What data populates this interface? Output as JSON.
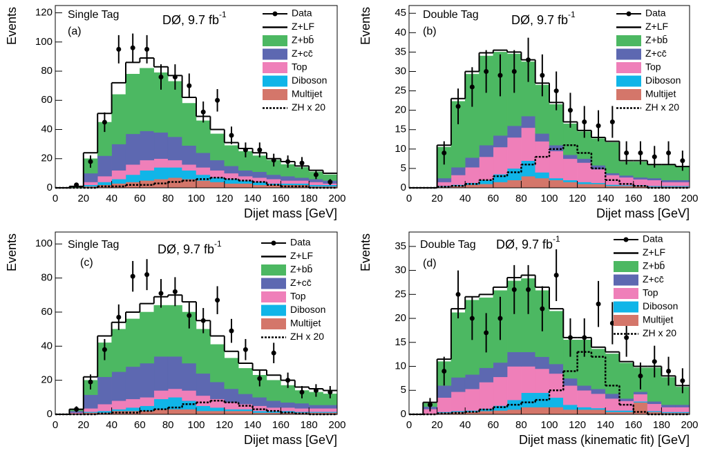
{
  "chart_data": [
    {
      "type": "histogram",
      "tag": "Single Tag",
      "panel": "(a)",
      "experiment": "DØ, 9.7 fb",
      "lumi_exponent": "-1",
      "xlabel": "Dijet mass [GeV]",
      "ylabel": "Events",
      "bins": [
        0,
        10,
        20,
        30,
        40,
        50,
        60,
        70,
        80,
        90,
        100,
        110,
        120,
        130,
        140,
        150,
        160,
        170,
        180,
        190,
        200
      ],
      "xlim": [
        0,
        200
      ],
      "xticks": [
        0,
        20,
        40,
        60,
        80,
        100,
        120,
        140,
        160,
        180,
        200
      ],
      "ylim": [
        0,
        125
      ],
      "yticks": [
        0,
        20,
        40,
        60,
        80,
        100,
        120
      ],
      "series": [
        {
          "name": "Data",
          "style": "points",
          "color": "#000000",
          "values": [
            null,
            2,
            18,
            45,
            95,
            96,
            95,
            76,
            76,
            70,
            52,
            60,
            36,
            26,
            26,
            19,
            18,
            17,
            9,
            4
          ],
          "errors": [
            null,
            1.4,
            4.2,
            6.7,
            9.7,
            9.8,
            9.7,
            8.7,
            8.7,
            8.4,
            7.2,
            7.7,
            6,
            5.1,
            5.1,
            4.4,
            4.2,
            4.1,
            3,
            2
          ]
        },
        {
          "name": "Z+LF",
          "style": "stack-line",
          "color": "#000000",
          "values": [
            0,
            0,
            4,
            6,
            8,
            8,
            7,
            4,
            4,
            4,
            3,
            3,
            2,
            2,
            2,
            1,
            2,
            1,
            1,
            1
          ]
        },
        {
          "name": "Z+bb̄",
          "style": "stack-fill",
          "color": "#4cb862",
          "values": [
            0,
            1,
            10,
            23,
            34,
            41,
            43,
            41,
            38,
            29,
            22,
            18,
            14,
            13,
            11,
            10,
            8,
            7,
            5,
            4
          ]
        },
        {
          "name": "Z+cc̄",
          "style": "stack-fill",
          "color": "#5d68b1",
          "values": [
            0,
            0,
            6,
            14,
            18,
            21,
            20,
            18,
            16,
            13,
            10,
            7,
            5,
            4,
            4,
            3,
            3,
            2,
            2,
            2
          ]
        },
        {
          "name": "Top",
          "style": "stack-fill",
          "color": "#ef7fb9",
          "values": [
            0,
            0,
            2,
            4,
            6,
            7,
            7,
            6,
            5,
            4,
            5,
            5,
            4,
            3,
            3,
            3,
            2,
            2,
            2,
            1
          ]
        },
        {
          "name": "Diboson",
          "style": "stack-fill",
          "color": "#10b5e8",
          "values": [
            0,
            0,
            1,
            2,
            3,
            5,
            7,
            8,
            7,
            6,
            4,
            3,
            3,
            2,
            2,
            1,
            1,
            1,
            1,
            1
          ]
        },
        {
          "name": "Multijet",
          "style": "stack-fill",
          "color": "#d4766a",
          "values": [
            0,
            0,
            1,
            2,
            3,
            4,
            5,
            6,
            7,
            6,
            5,
            4,
            3,
            3,
            2,
            2,
            2,
            2,
            1,
            1
          ]
        },
        {
          "name": "ZH x 20",
          "style": "dashed",
          "color": "#000000",
          "values": [
            0,
            0,
            0,
            1,
            1,
            2,
            2,
            3,
            4,
            5,
            6,
            7,
            6,
            5,
            4,
            2,
            1,
            1,
            0,
            0
          ]
        }
      ]
    },
    {
      "type": "histogram",
      "tag": "Double Tag",
      "panel": "(b)",
      "experiment": "DØ, 9.7 fb",
      "lumi_exponent": "-1",
      "xlabel": "Dijet mass [GeV]",
      "ylabel": "Events",
      "bins": [
        0,
        10,
        20,
        30,
        40,
        50,
        60,
        70,
        80,
        90,
        100,
        110,
        120,
        130,
        140,
        150,
        160,
        170,
        180,
        190,
        200
      ],
      "xlim": [
        0,
        200
      ],
      "xticks": [
        0,
        20,
        40,
        60,
        80,
        100,
        120,
        140,
        160,
        180,
        200
      ],
      "ylim": [
        0,
        47
      ],
      "yticks": [
        0,
        5,
        10,
        15,
        20,
        25,
        30,
        35,
        40,
        45
      ],
      "series": [
        {
          "name": "Data",
          "style": "points",
          "color": "#000000",
          "values": [
            null,
            null,
            9,
            21,
            26,
            30,
            29,
            30,
            33,
            29,
            25,
            20,
            17,
            16,
            17,
            9,
            9,
            8,
            9,
            7
          ],
          "errors": [
            null,
            null,
            3,
            4.6,
            5.1,
            5.5,
            5.4,
            5.5,
            5.7,
            5.4,
            5,
            4.5,
            4.1,
            4,
            4.1,
            3,
            3,
            2.8,
            3,
            2.6
          ]
        },
        {
          "name": "Z+LF",
          "style": "stack-line",
          "color": "#000000",
          "values": [
            0,
            0,
            0.5,
            0.7,
            0.7,
            0.8,
            0.5,
            0.5,
            0.5,
            0.5,
            0.5,
            0.5,
            0.3,
            0.3,
            0.3,
            0.3,
            0.3,
            0.2,
            0.2,
            0.2
          ]
        },
        {
          "name": "Z+bb̄",
          "style": "stack-fill",
          "color": "#4cb862",
          "values": [
            0,
            0,
            8,
            17,
            21.5,
            23,
            21.5,
            18.5,
            14,
            12.5,
            10.5,
            8,
            7,
            6.9,
            7.9,
            3.5,
            4,
            3.3,
            3.8,
            3.3
          ]
        },
        {
          "name": "Z+cc̄",
          "style": "stack-fill",
          "color": "#5d68b1",
          "values": [
            0,
            0,
            1,
            2,
            2.5,
            3,
            3,
            3,
            3,
            2,
            1.5,
            1,
            1,
            1,
            0.5,
            0.5,
            0.5,
            0.5,
            0.5,
            0.5
          ]
        },
        {
          "name": "Top",
          "style": "stack-fill",
          "color": "#ef7fb9",
          "values": [
            0,
            0,
            1,
            2.5,
            4,
            6,
            7,
            8,
            8.5,
            8,
            7,
            5.5,
            5,
            3.5,
            2.5,
            2,
            1.5,
            1.5,
            1,
            1
          ]
        },
        {
          "name": "Diboson",
          "style": "stack-fill",
          "color": "#10b5e8",
          "values": [
            0,
            0,
            0.2,
            0.3,
            0.5,
            1,
            2,
            3,
            4,
            1.5,
            0.5,
            0.5,
            0.5,
            0.3,
            0.3,
            0.2,
            0.2,
            0.2,
            0.2,
            0.2
          ]
        },
        {
          "name": "Multijet",
          "style": "stack-fill",
          "color": "#d4766a",
          "values": [
            0,
            0,
            0.3,
            0.5,
            0.8,
            1,
            1.5,
            2,
            3,
            2.5,
            2,
            1.5,
            1,
            1,
            0.5,
            0.5,
            0.5,
            0.3,
            0.3,
            0.3
          ]
        },
        {
          "name": "ZH x 20",
          "style": "dashed",
          "color": "#000000",
          "values": [
            0,
            0,
            0.3,
            0.5,
            1,
            2,
            3,
            4,
            6,
            8,
            10,
            11,
            9,
            5,
            2,
            1,
            0.5,
            0,
            0,
            0
          ]
        }
      ]
    },
    {
      "type": "histogram",
      "tag": "Single Tag",
      "panel": "(c)",
      "experiment": "DØ, 9.7 fb",
      "lumi_exponent": "-1",
      "xlabel": "Dijet mass [GeV]",
      "ylabel": "Events",
      "bins": [
        0,
        10,
        20,
        30,
        40,
        50,
        60,
        70,
        80,
        90,
        100,
        110,
        120,
        130,
        140,
        150,
        160,
        170,
        180,
        190,
        200
      ],
      "xlim": [
        0,
        200
      ],
      "xticks": [
        0,
        20,
        40,
        60,
        80,
        100,
        120,
        140,
        160,
        180,
        200
      ],
      "ylim": [
        0,
        107
      ],
      "yticks": [
        0,
        20,
        40,
        60,
        80,
        100
      ],
      "series": [
        {
          "name": "Data",
          "style": "points",
          "color": "#000000",
          "values": [
            null,
            3,
            19,
            38,
            57,
            81,
            82,
            71,
            72,
            58,
            55,
            67,
            49,
            38,
            21,
            36,
            20,
            13,
            14,
            13
          ],
          "errors": [
            null,
            1.7,
            4.4,
            6.2,
            7.5,
            9,
            9.1,
            8.4,
            8.5,
            7.6,
            7.4,
            8.2,
            7,
            6.2,
            4.6,
            6,
            4.5,
            3.6,
            3.7,
            3.6
          ]
        },
        {
          "name": "Z+LF",
          "style": "stack-line",
          "color": "#000000",
          "values": [
            0,
            0,
            2,
            4,
            4,
            4,
            5,
            5,
            6,
            6,
            5,
            5,
            4,
            3,
            3,
            3,
            3,
            2,
            2,
            2
          ]
        },
        {
          "name": "Z+bb̄",
          "style": "stack-fill",
          "color": "#4cb862",
          "values": [
            0,
            1,
            8.5,
            20,
            25,
            28,
            30,
            30,
            30,
            30,
            26,
            22,
            18,
            15,
            13,
            12,
            10,
            7.5,
            7.5,
            6.5
          ]
        },
        {
          "name": "Z+cc̄",
          "style": "stack-fill",
          "color": "#5d68b1",
          "values": [
            0,
            1,
            8,
            16,
            17,
            19,
            20,
            20,
            19,
            16,
            13,
            10,
            8,
            6,
            5,
            4,
            3,
            3,
            2,
            2
          ]
        },
        {
          "name": "Top",
          "style": "stack-fill",
          "color": "#ef7fb9",
          "values": [
            0,
            0.5,
            2,
            4,
            5,
            5,
            5,
            5,
            5,
            6,
            6,
            5,
            4,
            3,
            3,
            2,
            2,
            2,
            2,
            2
          ]
        },
        {
          "name": "Diboson",
          "style": "stack-fill",
          "color": "#10b5e8",
          "values": [
            0,
            0,
            0.5,
            1,
            1,
            2,
            3,
            6,
            7,
            5,
            3,
            2,
            1,
            1,
            1,
            1,
            1,
            0.5,
            0.5,
            0.5
          ]
        },
        {
          "name": "Multijet",
          "style": "stack-fill",
          "color": "#d4766a",
          "values": [
            0,
            0.5,
            1,
            1,
            2,
            2,
            2,
            3,
            3,
            3,
            2,
            2,
            2,
            2,
            1,
            1,
            1,
            1,
            1,
            1
          ]
        },
        {
          "name": "ZH x 20",
          "style": "dashed",
          "color": "#000000",
          "values": [
            0,
            0,
            0,
            0.5,
            1,
            1,
            2,
            3,
            4,
            6,
            7,
            8,
            7,
            5,
            3,
            2,
            1,
            0.5,
            0,
            0
          ]
        }
      ]
    },
    {
      "type": "histogram",
      "tag": "Double Tag",
      "panel": "(d)",
      "experiment": "DØ, 9.7 fb",
      "lumi_exponent": "-1",
      "xlabel": "Dijet mass (kinematic fit) [GeV]",
      "ylabel": "Events",
      "bins": [
        0,
        10,
        20,
        30,
        40,
        50,
        60,
        70,
        80,
        90,
        100,
        110,
        120,
        130,
        140,
        150,
        160,
        170,
        180,
        190,
        200
      ],
      "xlim": [
        0,
        200
      ],
      "xticks": [
        0,
        20,
        40,
        60,
        80,
        100,
        120,
        140,
        160,
        180,
        200
      ],
      "ylim": [
        0,
        38
      ],
      "yticks": [
        0,
        5,
        10,
        15,
        20,
        25,
        30,
        35
      ],
      "series": [
        {
          "name": "Data",
          "style": "points",
          "color": "#000000",
          "values": [
            null,
            2,
            9,
            25,
            20,
            17,
            20,
            26,
            26,
            22,
            29,
            16,
            16,
            23,
            19,
            16,
            8,
            11,
            9,
            7
          ],
          "errors": [
            null,
            1.4,
            3,
            5,
            4.5,
            4.1,
            4.5,
            5.1,
            5.1,
            4.7,
            5.4,
            4,
            4,
            4.8,
            4.4,
            4,
            2.8,
            3.3,
            3,
            2.6
          ]
        },
        {
          "name": "Z+LF",
          "style": "stack-line",
          "color": "#000000",
          "values": [
            0,
            0.2,
            0.5,
            0.8,
            0.7,
            0.7,
            0.7,
            0.7,
            0.7,
            0.7,
            0.5,
            0.5,
            0.5,
            0.4,
            0.4,
            0.3,
            0.3,
            0.3,
            0.3,
            0.3
          ]
        },
        {
          "name": "Z+bb̄",
          "style": "stack-fill",
          "color": "#4cb862",
          "values": [
            0,
            0.7,
            5,
            13.5,
            15.5,
            14.6,
            15,
            14.8,
            15.3,
            13.8,
            11,
            8,
            9.5,
            8.3,
            8.3,
            7.4,
            5,
            7,
            5.7,
            3.7
          ]
        },
        {
          "name": "Z+cc̄",
          "style": "stack-fill",
          "color": "#5d68b1",
          "values": [
            0,
            0.5,
            2.5,
            3,
            3,
            3,
            3,
            3,
            3,
            2.5,
            2,
            1.5,
            1,
            1,
            1,
            0.5,
            0.5,
            0.5,
            0.5,
            0.5
          ]
        },
        {
          "name": "Top",
          "style": "stack-fill",
          "color": "#ef7fb9",
          "values": [
            0,
            1,
            3,
            4,
            4.5,
            5.5,
            6,
            7,
            5.5,
            5,
            5,
            4,
            3.5,
            3,
            2.5,
            2,
            1.5,
            1.5,
            1,
            1
          ]
        },
        {
          "name": "Diboson",
          "style": "stack-fill",
          "color": "#10b5e8",
          "values": [
            0,
            0,
            0.2,
            0.2,
            0.3,
            0.5,
            1,
            2,
            3,
            3,
            2,
            1,
            0.5,
            0.3,
            0.3,
            0.3,
            0.2,
            0.2,
            0.2,
            0.2
          ]
        },
        {
          "name": "Multijet",
          "style": "stack-fill",
          "color": "#d4766a",
          "values": [
            0,
            0.1,
            0.3,
            0.5,
            0.5,
            0.7,
            0.8,
            1,
            1.5,
            1.5,
            1.5,
            1,
            1,
            1,
            0.5,
            0.5,
            2.5,
            0.5,
            0.3,
            0.3
          ]
        },
        {
          "name": "ZH x 20",
          "style": "dashed",
          "color": "#000000",
          "values": [
            0,
            0,
            0.2,
            0.3,
            0.5,
            1,
            1.5,
            2,
            2.5,
            3,
            5,
            9,
            13,
            12,
            6,
            2,
            0.5,
            0,
            0,
            0
          ]
        }
      ]
    }
  ]
}
